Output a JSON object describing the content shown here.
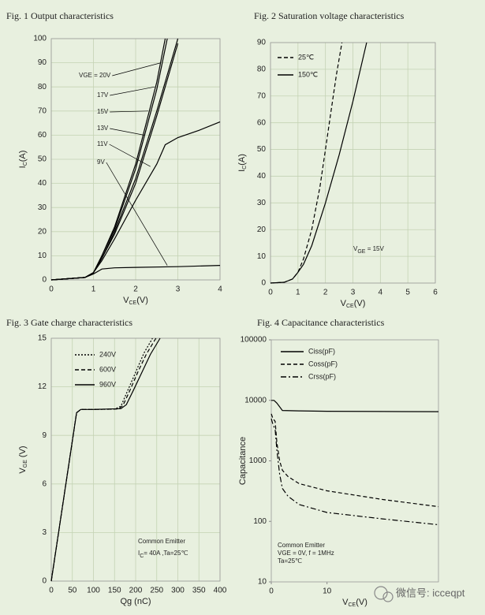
{
  "chart_data": [
    {
      "type": "line",
      "title": "Fig. 1 Output characteristics",
      "xlabel": [
        "V",
        "CE",
        "(V)"
      ],
      "ylabel": [
        "I",
        "C",
        "(A)"
      ],
      "xlim": [
        0,
        4
      ],
      "xticks": [
        0,
        1,
        2,
        3,
        4
      ],
      "ylim": [
        0,
        100
      ],
      "yticks": [
        0,
        10,
        20,
        30,
        40,
        50,
        60,
        70,
        80,
        90,
        100
      ],
      "grid": true,
      "series": [
        {
          "name": "VGE = 20V",
          "color": "#000000",
          "style": "solid",
          "x": [
            0,
            0.8,
            1,
            1.2,
            1.5,
            2,
            2.5,
            2.7
          ],
          "values": [
            0,
            1,
            3,
            10,
            22,
            48,
            82,
            100
          ]
        },
        {
          "name": "17V",
          "color": "#000000",
          "style": "solid",
          "x": [
            0,
            0.8,
            1,
            1.2,
            1.5,
            2,
            2.5,
            2.75
          ],
          "values": [
            0,
            1,
            3,
            10,
            21,
            46,
            79,
            100
          ]
        },
        {
          "name": "15V",
          "color": "#000000",
          "style": "solid",
          "x": [
            0,
            0.8,
            1,
            1.2,
            1.5,
            2,
            2.5,
            3
          ],
          "values": [
            0,
            1,
            3,
            9,
            20,
            42,
            70,
            100
          ]
        },
        {
          "name": "13V",
          "color": "#000000",
          "style": "solid",
          "x": [
            0,
            0.8,
            1,
            1.2,
            1.5,
            2,
            2.5,
            3
          ],
          "values": [
            0,
            1,
            3,
            9,
            19,
            40,
            68,
            98
          ]
        },
        {
          "name": "11V",
          "color": "#000000",
          "style": "solid",
          "x": [
            0,
            0.8,
            1,
            1.2,
            1.5,
            2,
            2.5,
            2.7,
            3,
            3.5,
            4
          ],
          "values": [
            0,
            1,
            3,
            8,
            17,
            33,
            48,
            56,
            59,
            62,
            65.5
          ]
        },
        {
          "name": "9V",
          "color": "#000000",
          "style": "solid",
          "x": [
            0,
            0.8,
            1,
            1.2,
            1.5,
            2,
            3,
            4
          ],
          "values": [
            0,
            1,
            2.5,
            4.5,
            5,
            5.2,
            5.5,
            6
          ]
        }
      ]
    },
    {
      "type": "line",
      "title": "Fig. 2  Saturation voltage characteristics",
      "xlabel": [
        "V",
        "CE",
        "(V)"
      ],
      "ylabel": [
        "I",
        "C",
        "(A)"
      ],
      "xlim": [
        0,
        6
      ],
      "xticks": [
        0,
        1,
        2,
        3,
        4,
        5,
        6
      ],
      "ylim": [
        0,
        90
      ],
      "yticks": [
        0,
        10,
        20,
        30,
        40,
        50,
        60,
        70,
        80,
        90
      ],
      "grid": true,
      "annotations": [
        [
          "V",
          "GE",
          " = 15V"
        ]
      ],
      "series": [
        {
          "name": "25℃",
          "color": "#000000",
          "style": "dashed",
          "x": [
            0,
            0.5,
            0.8,
            1,
            1.2,
            1.5,
            1.8,
            2,
            2.2,
            2.4,
            2.6
          ],
          "values": [
            0,
            0.3,
            1.5,
            4,
            9,
            20,
            36,
            50,
            64,
            78,
            90
          ]
        },
        {
          "name": "150℃",
          "color": "#000000",
          "style": "solid",
          "x": [
            0,
            0.5,
            0.8,
            1,
            1.2,
            1.5,
            2,
            2.5,
            3,
            3.5
          ],
          "values": [
            0,
            0.3,
            1.5,
            4,
            7,
            14,
            30,
            48,
            68,
            90
          ]
        }
      ]
    },
    {
      "type": "line",
      "title": "Fig. 3  Gate charge characteristics",
      "xlabel": [
        "Qg (nC)"
      ],
      "ylabel": [
        "V",
        "GE",
        " (V)"
      ],
      "xlim": [
        0,
        400
      ],
      "xticks": [
        0,
        50,
        100,
        150,
        200,
        250,
        300,
        350,
        400
      ],
      "ylim": [
        0,
        15
      ],
      "yticks": [
        0,
        3,
        6,
        9,
        12,
        15
      ],
      "grid": true,
      "annotations": [
        [
          "Common Emitter"
        ],
        [
          "I",
          "C",
          "= 40A ,Ta=25℃"
        ]
      ],
      "series": [
        {
          "name": "240V",
          "color": "#000000",
          "style": "dotted",
          "x": [
            0,
            60,
            70,
            100,
            150,
            165,
            180,
            200,
            220,
            240
          ],
          "values": [
            0,
            10.4,
            10.6,
            10.6,
            10.62,
            10.8,
            11.7,
            12.9,
            14.1,
            15
          ]
        },
        {
          "name": "600V",
          "color": "#000000",
          "style": "dashed",
          "x": [
            0,
            60,
            70,
            100,
            160,
            170,
            185,
            205,
            225,
            248
          ],
          "values": [
            0,
            10.4,
            10.6,
            10.6,
            10.63,
            10.85,
            11.7,
            12.9,
            14,
            15
          ]
        },
        {
          "name": "960V",
          "color": "#000000",
          "style": "solid",
          "x": [
            0,
            60,
            70,
            100,
            165,
            178,
            195,
            215,
            235,
            258
          ],
          "values": [
            0,
            10.4,
            10.6,
            10.6,
            10.65,
            10.9,
            11.8,
            12.9,
            14,
            15
          ]
        }
      ]
    },
    {
      "type": "line",
      "title": "Fig. 4  Capacitance characteristics",
      "xlabel": [
        "V",
        "CE",
        "(V)"
      ],
      "ylabel": [
        "Capacitance"
      ],
      "xlim": [
        0,
        30
      ],
      "xticks": [
        0,
        10
      ],
      "ylim": [
        10,
        100000
      ],
      "yticks": [
        10,
        100,
        1000,
        10000,
        100000
      ],
      "ylog": true,
      "grid": false,
      "annotations": [
        [
          "Common Emitter"
        ],
        [
          "VGE = 0V, f = 1MHz"
        ],
        [
          "Ta=25℃"
        ]
      ],
      "series": [
        {
          "name": "Ciss(pF)",
          "color": "#000000",
          "style": "solid",
          "x": [
            0,
            0.5,
            1,
            2,
            5,
            10,
            20,
            30
          ],
          "values": [
            10000,
            10000,
            9000,
            6800,
            6700,
            6600,
            6550,
            6500
          ]
        },
        {
          "name": "Coss(pF)",
          "color": "#000000",
          "style": "dashed",
          "x": [
            0,
            0.3,
            0.7,
            1,
            1.5,
            2,
            3,
            5,
            10,
            20,
            30
          ],
          "values": [
            6000,
            5000,
            4500,
            2000,
            1000,
            700,
            550,
            420,
            320,
            230,
            175
          ]
        },
        {
          "name": "Crss(pF)",
          "color": "#000000",
          "style": "dashdot",
          "x": [
            0,
            0.3,
            0.7,
            1,
            1.5,
            2,
            3,
            5,
            10,
            20,
            30
          ],
          "values": [
            5000,
            4000,
            3300,
            1500,
            600,
            350,
            260,
            190,
            140,
            110,
            88
          ]
        }
      ]
    }
  ],
  "watermark": "微信号: icceqpt"
}
